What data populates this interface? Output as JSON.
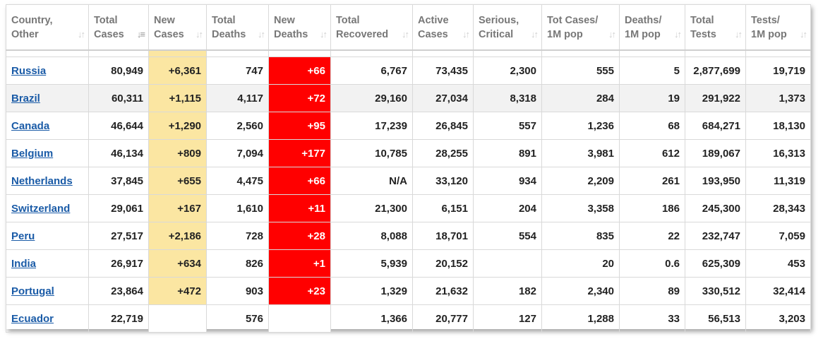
{
  "colors": {
    "new_cases_bg": "#fbe6a2",
    "new_deaths_bg": "#ff0000",
    "link": "#1a5ba7"
  },
  "headers": [
    {
      "line1": "Country,",
      "line2": "Other",
      "sort_icon": "sort-icon"
    },
    {
      "line1": "Total",
      "line2": "Cases",
      "sort_icon": "sort-desc-icon"
    },
    {
      "line1": "New",
      "line2": "Cases",
      "sort_icon": "sort-icon"
    },
    {
      "line1": "Total",
      "line2": "Deaths",
      "sort_icon": "sort-icon"
    },
    {
      "line1": "New",
      "line2": "Deaths",
      "sort_icon": "sort-icon"
    },
    {
      "line1": "Total",
      "line2": "Recovered",
      "sort_icon": "sort-icon"
    },
    {
      "line1": "Active",
      "line2": "Cases",
      "sort_icon": "sort-icon"
    },
    {
      "line1": "Serious,",
      "line2": "Critical",
      "sort_icon": "sort-icon"
    },
    {
      "line1": "Tot Cases/",
      "line2": "1M pop",
      "sort_icon": "sort-icon"
    },
    {
      "line1": "Deaths/",
      "line2": "1M pop",
      "sort_icon": "sort-icon"
    },
    {
      "line1": "Total",
      "line2": "Tests",
      "sort_icon": "sort-icon"
    },
    {
      "line1": "Tests/",
      "line2": "1M pop",
      "sort_icon": "sort-icon"
    }
  ],
  "rows": [
    [
      "Russia",
      "80,949",
      "+6,361",
      "747",
      "+66",
      "6,767",
      "73,435",
      "2,300",
      "555",
      "5",
      "2,877,699",
      "19,719"
    ],
    [
      "Brazil",
      "60,311",
      "+1,115",
      "4,117",
      "+72",
      "29,160",
      "27,034",
      "8,318",
      "284",
      "19",
      "291,922",
      "1,373"
    ],
    [
      "Canada",
      "46,644",
      "+1,290",
      "2,560",
      "+95",
      "17,239",
      "26,845",
      "557",
      "1,236",
      "68",
      "684,271",
      "18,130"
    ],
    [
      "Belgium",
      "46,134",
      "+809",
      "7,094",
      "+177",
      "10,785",
      "28,255",
      "891",
      "3,981",
      "612",
      "189,067",
      "16,313"
    ],
    [
      "Netherlands",
      "37,845",
      "+655",
      "4,475",
      "+66",
      "N/A",
      "33,120",
      "934",
      "2,209",
      "261",
      "193,950",
      "11,319"
    ],
    [
      "Switzerland",
      "29,061",
      "+167",
      "1,610",
      "+11",
      "21,300",
      "6,151",
      "204",
      "3,358",
      "186",
      "245,300",
      "28,343"
    ],
    [
      "Peru",
      "27,517",
      "+2,186",
      "728",
      "+28",
      "8,088",
      "18,701",
      "554",
      "835",
      "22",
      "232,747",
      "7,059"
    ],
    [
      "India",
      "26,917",
      "+634",
      "826",
      "+1",
      "5,939",
      "20,152",
      "",
      "20",
      "0.6",
      "625,309",
      "453"
    ],
    [
      "Portugal",
      "23,864",
      "+472",
      "903",
      "+23",
      "1,329",
      "21,632",
      "182",
      "2,340",
      "89",
      "330,512",
      "32,414"
    ],
    [
      "Ecuador",
      "22,719",
      "",
      "576",
      "",
      "1,366",
      "20,777",
      "127",
      "1,288",
      "33",
      "56,513",
      "3,203"
    ]
  ]
}
